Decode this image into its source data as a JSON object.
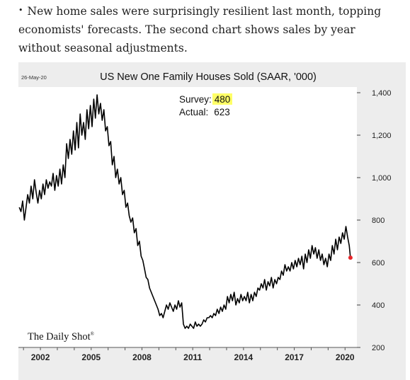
{
  "caption": {
    "bullet": "•",
    "text": "New home sales were surprisingly resilient last month, topping economists' forecasts. The second chart shows sales by year without seasonal adjustments."
  },
  "chart_data": {
    "type": "line",
    "date": "26-May-20",
    "title": "US New One Family Houses Sold (SAAR, '000)",
    "annotation": {
      "survey_label": "Survey:",
      "survey_value": "480",
      "actual_label": "Actual:",
      "actual_value": "623"
    },
    "source": "The Daily Shot",
    "source_mark": "®",
    "xlim": [
      2000.7,
      2020.7
    ],
    "ylim": [
      200,
      1400
    ],
    "x_ticks": [
      2002,
      2005,
      2008,
      2011,
      2014,
      2017,
      2020
    ],
    "y_ticks": [
      {
        "v": 200,
        "label": "200"
      },
      {
        "v": 400,
        "label": "400"
      },
      {
        "v": 600,
        "label": "600"
      },
      {
        "v": 800,
        "label": "800"
      },
      {
        "v": 1000,
        "label": "1,000"
      },
      {
        "v": 1200,
        "label": "1,200"
      },
      {
        "v": 1400,
        "label": "1,400"
      }
    ],
    "series": [
      {
        "values": [
          [
            2000.75,
            860
          ],
          [
            2000.85,
            840
          ],
          [
            2000.95,
            890
          ],
          [
            2001.05,
            800
          ],
          [
            2001.15,
            860
          ],
          [
            2001.25,
            920
          ],
          [
            2001.35,
            880
          ],
          [
            2001.45,
            960
          ],
          [
            2001.55,
            900
          ],
          [
            2001.65,
            990
          ],
          [
            2001.75,
            930
          ],
          [
            2001.85,
            880
          ],
          [
            2001.95,
            940
          ],
          [
            2002.05,
            900
          ],
          [
            2002.15,
            970
          ],
          [
            2002.25,
            920
          ],
          [
            2002.35,
            990
          ],
          [
            2002.45,
            950
          ],
          [
            2002.55,
            980
          ],
          [
            2002.65,
            960
          ],
          [
            2002.75,
            1020
          ],
          [
            2002.85,
            940
          ],
          [
            2002.95,
            1010
          ],
          [
            2003.05,
            960
          ],
          [
            2003.15,
            1040
          ],
          [
            2003.25,
            970
          ],
          [
            2003.35,
            1060
          ],
          [
            2003.45,
            1000
          ],
          [
            2003.55,
            1160
          ],
          [
            2003.65,
            1090
          ],
          [
            2003.75,
            1180
          ],
          [
            2003.85,
            1110
          ],
          [
            2003.95,
            1220
          ],
          [
            2004.05,
            1130
          ],
          [
            2004.15,
            1260
          ],
          [
            2004.25,
            1140
          ],
          [
            2004.35,
            1300
          ],
          [
            2004.45,
            1200
          ],
          [
            2004.55,
            1260
          ],
          [
            2004.65,
            1180
          ],
          [
            2004.75,
            1320
          ],
          [
            2004.85,
            1230
          ],
          [
            2004.95,
            1340
          ],
          [
            2005.05,
            1240
          ],
          [
            2005.15,
            1370
          ],
          [
            2005.25,
            1280
          ],
          [
            2005.35,
            1390
          ],
          [
            2005.45,
            1300
          ],
          [
            2005.55,
            1350
          ],
          [
            2005.65,
            1270
          ],
          [
            2005.75,
            1320
          ],
          [
            2005.85,
            1220
          ],
          [
            2005.95,
            1240
          ],
          [
            2006.05,
            1150
          ],
          [
            2006.15,
            1170
          ],
          [
            2006.25,
            1060
          ],
          [
            2006.35,
            1100
          ],
          [
            2006.45,
            1000
          ],
          [
            2006.55,
            1040
          ],
          [
            2006.65,
            970
          ],
          [
            2006.75,
            1000
          ],
          [
            2006.85,
            920
          ],
          [
            2006.95,
            940
          ],
          [
            2007.05,
            860
          ],
          [
            2007.15,
            880
          ],
          [
            2007.25,
            820
          ],
          [
            2007.35,
            790
          ],
          [
            2007.45,
            810
          ],
          [
            2007.55,
            740
          ],
          [
            2007.65,
            760
          ],
          [
            2007.75,
            680
          ],
          [
            2007.85,
            700
          ],
          [
            2007.95,
            630
          ],
          [
            2008.05,
            610
          ],
          [
            2008.15,
            570
          ],
          [
            2008.25,
            530
          ],
          [
            2008.35,
            520
          ],
          [
            2008.45,
            480
          ],
          [
            2008.55,
            460
          ],
          [
            2008.65,
            440
          ],
          [
            2008.75,
            420
          ],
          [
            2008.85,
            400
          ],
          [
            2008.95,
            380
          ],
          [
            2009.05,
            350
          ],
          [
            2009.15,
            360
          ],
          [
            2009.25,
            340
          ],
          [
            2009.35,
            370
          ],
          [
            2009.45,
            400
          ],
          [
            2009.55,
            380
          ],
          [
            2009.65,
            410
          ],
          [
            2009.75,
            390
          ],
          [
            2009.85,
            370
          ],
          [
            2009.95,
            400
          ],
          [
            2010.05,
            380
          ],
          [
            2010.15,
            420
          ],
          [
            2010.25,
            390
          ],
          [
            2010.35,
            410
          ],
          [
            2010.45,
            310
          ],
          [
            2010.55,
            290
          ],
          [
            2010.65,
            300
          ],
          [
            2010.75,
            290
          ],
          [
            2010.85,
            310
          ],
          [
            2010.95,
            300
          ],
          [
            2011.05,
            290
          ],
          [
            2011.15,
            320
          ],
          [
            2011.25,
            300
          ],
          [
            2011.35,
            310
          ],
          [
            2011.45,
            300
          ],
          [
            2011.55,
            310
          ],
          [
            2011.65,
            330
          ],
          [
            2011.75,
            320
          ],
          [
            2011.85,
            340
          ],
          [
            2011.95,
            340
          ],
          [
            2012.05,
            350
          ],
          [
            2012.15,
            340
          ],
          [
            2012.25,
            360
          ],
          [
            2012.35,
            350
          ],
          [
            2012.45,
            380
          ],
          [
            2012.55,
            360
          ],
          [
            2012.65,
            390
          ],
          [
            2012.75,
            370
          ],
          [
            2012.85,
            400
          ],
          [
            2012.95,
            380
          ],
          [
            2013.05,
            440
          ],
          [
            2013.15,
            410
          ],
          [
            2013.25,
            450
          ],
          [
            2013.35,
            420
          ],
          [
            2013.45,
            460
          ],
          [
            2013.55,
            400
          ],
          [
            2013.65,
            430
          ],
          [
            2013.75,
            410
          ],
          [
            2013.85,
            450
          ],
          [
            2013.95,
            420
          ],
          [
            2014.05,
            440
          ],
          [
            2014.15,
            420
          ],
          [
            2014.25,
            460
          ],
          [
            2014.35,
            410
          ],
          [
            2014.45,
            450
          ],
          [
            2014.55,
            420
          ],
          [
            2014.65,
            460
          ],
          [
            2014.75,
            440
          ],
          [
            2014.85,
            480
          ],
          [
            2014.95,
            470
          ],
          [
            2015.05,
            500
          ],
          [
            2015.15,
            480
          ],
          [
            2015.25,
            520
          ],
          [
            2015.35,
            470
          ],
          [
            2015.45,
            510
          ],
          [
            2015.55,
            490
          ],
          [
            2015.65,
            530
          ],
          [
            2015.75,
            480
          ],
          [
            2015.85,
            520
          ],
          [
            2015.95,
            500
          ],
          [
            2016.05,
            530
          ],
          [
            2016.15,
            520
          ],
          [
            2016.25,
            560
          ],
          [
            2016.35,
            540
          ],
          [
            2016.45,
            590
          ],
          [
            2016.55,
            560
          ],
          [
            2016.65,
            580
          ],
          [
            2016.75,
            560
          ],
          [
            2016.85,
            600
          ],
          [
            2016.95,
            570
          ],
          [
            2017.05,
            610
          ],
          [
            2017.15,
            580
          ],
          [
            2017.25,
            620
          ],
          [
            2017.35,
            590
          ],
          [
            2017.45,
            630
          ],
          [
            2017.55,
            570
          ],
          [
            2017.65,
            640
          ],
          [
            2017.75,
            600
          ],
          [
            2017.85,
            660
          ],
          [
            2017.95,
            620
          ],
          [
            2018.05,
            680
          ],
          [
            2018.15,
            640
          ],
          [
            2018.25,
            670
          ],
          [
            2018.35,
            620
          ],
          [
            2018.45,
            660
          ],
          [
            2018.55,
            610
          ],
          [
            2018.65,
            640
          ],
          [
            2018.75,
            590
          ],
          [
            2018.85,
            620
          ],
          [
            2018.95,
            580
          ],
          [
            2019.05,
            640
          ],
          [
            2019.15,
            610
          ],
          [
            2019.25,
            680
          ],
          [
            2019.35,
            640
          ],
          [
            2019.45,
            710
          ],
          [
            2019.55,
            660
          ],
          [
            2019.65,
            720
          ],
          [
            2019.75,
            690
          ],
          [
            2019.85,
            740
          ],
          [
            2019.95,
            710
          ],
          [
            2020.05,
            770
          ],
          [
            2020.15,
            720
          ],
          [
            2020.25,
            680
          ],
          [
            2020.32,
            623
          ]
        ],
        "last_point": [
          2020.32,
          623
        ],
        "line_color": "#000000",
        "last_point_color": "#e8272b"
      }
    ],
    "annotation_highlight": "#ffff66",
    "grid": false
  }
}
